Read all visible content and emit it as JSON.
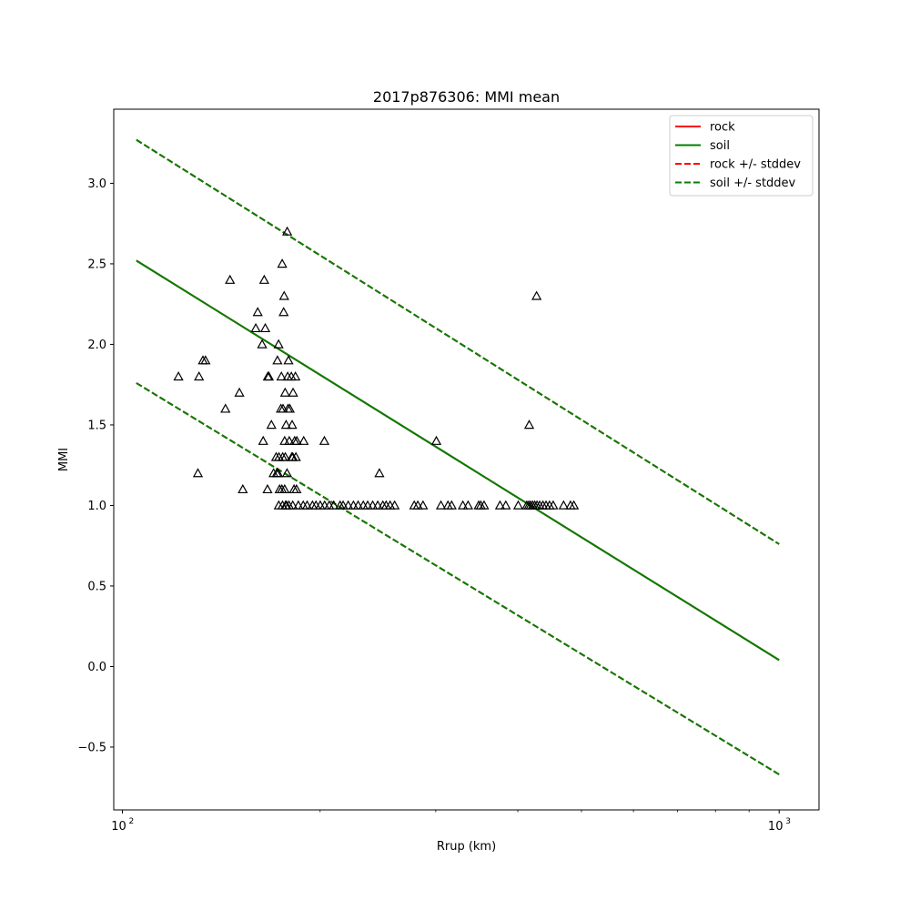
{
  "chart_data": {
    "type": "scatter",
    "title": "2017p876306: MMI mean",
    "xlabel": "Rrup (km)",
    "ylabel": "MMI",
    "xscale": "log",
    "xlim": [
      97,
      1150
    ],
    "ylim": [
      -0.89,
      3.46
    ],
    "xticks": [
      {
        "value": 100,
        "label": "10",
        "sup": "2"
      },
      {
        "value": 1000,
        "label": "10",
        "sup": "3"
      }
    ],
    "yticks": [
      {
        "value": -0.5,
        "label": "−0.5"
      },
      {
        "value": 0.0,
        "label": "0.0"
      },
      {
        "value": 0.5,
        "label": "0.5"
      },
      {
        "value": 1.0,
        "label": "1.0"
      },
      {
        "value": 1.5,
        "label": "1.5"
      },
      {
        "value": 2.0,
        "label": "2.0"
      },
      {
        "value": 2.5,
        "label": "2.5"
      },
      {
        "value": 3.0,
        "label": "3.0"
      }
    ],
    "grid": false,
    "legend_position": "top-right",
    "lines": [
      {
        "name": "rock",
        "color": "#ff0000",
        "dash": false,
        "x": [
          105,
          1000
        ],
        "y": [
          2.52,
          0.04
        ]
      },
      {
        "name": "soil",
        "color": "#008000",
        "dash": false,
        "x": [
          105,
          1000
        ],
        "y": [
          2.52,
          0.04
        ]
      },
      {
        "name": "rock +/- stddev",
        "color": "#ff0000",
        "dash": true,
        "x": [
          105,
          1000
        ],
        "y": [
          3.27,
          0.76
        ]
      },
      {
        "name": "rock +/- stddev",
        "color": "#ff0000",
        "dash": true,
        "x": [
          105,
          1000
        ],
        "y": [
          1.76,
          -0.67
        ]
      },
      {
        "name": "soil +/- stddev",
        "color": "#008000",
        "dash": true,
        "x": [
          105,
          1000
        ],
        "y": [
          3.27,
          0.76
        ]
      },
      {
        "name": "soil +/- stddev",
        "color": "#008000",
        "dash": true,
        "x": [
          105,
          1000
        ],
        "y": [
          1.76,
          -0.67
        ]
      }
    ],
    "legend": [
      {
        "label": "rock",
        "color": "#ff0000",
        "dash": false
      },
      {
        "label": "soil",
        "color": "#008000",
        "dash": false
      },
      {
        "label": "rock +/- stddev",
        "color": "#ff0000",
        "dash": true
      },
      {
        "label": "soil +/- stddev",
        "color": "#008000",
        "dash": true
      }
    ],
    "points": [
      [
        121.7,
        1.8
      ],
      [
        130.8,
        1.8
      ],
      [
        133.8,
        1.9
      ],
      [
        132.6,
        1.9
      ],
      [
        130.3,
        1.2
      ],
      [
        145.8,
        2.4
      ],
      [
        150.7,
        1.7
      ],
      [
        143.5,
        1.6
      ],
      [
        152.5,
        1.1
      ],
      [
        159.6,
        2.1
      ],
      [
        160.7,
        2.2
      ],
      [
        163.2,
        2.0
      ],
      [
        165.0,
        2.1
      ],
      [
        164.4,
        2.4
      ],
      [
        166.5,
        1.8
      ],
      [
        167.1,
        1.8
      ],
      [
        163.8,
        1.4
      ],
      [
        166.3,
        1.1
      ],
      [
        168.6,
        1.5
      ],
      [
        169.9,
        1.2
      ],
      [
        171.8,
        1.2
      ],
      [
        172.9,
        2.0
      ],
      [
        175.1,
        2.5
      ],
      [
        176.3,
        2.3
      ],
      [
        176.0,
        2.2
      ],
      [
        178.2,
        2.7
      ],
      [
        172.2,
        1.9
      ],
      [
        174.6,
        1.8
      ],
      [
        176.9,
        1.7
      ],
      [
        178.5,
        1.8
      ],
      [
        179.0,
        1.9
      ],
      [
        180.8,
        1.8
      ],
      [
        181.9,
        1.7
      ],
      [
        173.1,
        1.3
      ],
      [
        175.4,
        1.3
      ],
      [
        176.6,
        1.4
      ],
      [
        177.5,
        1.5
      ],
      [
        178.7,
        1.6
      ],
      [
        179.8,
        1.6
      ],
      [
        181.3,
        1.5
      ],
      [
        174.3,
        1.6
      ],
      [
        175.6,
        1.6
      ],
      [
        183.4,
        1.8
      ],
      [
        182.9,
        1.4
      ],
      [
        184.3,
        1.4
      ],
      [
        181.7,
        1.3
      ],
      [
        179.5,
        1.4
      ],
      [
        171.4,
        1.3
      ],
      [
        172.6,
        1.2
      ],
      [
        177.0,
        1.3
      ],
      [
        178.1,
        1.2
      ],
      [
        182.5,
        1.1
      ],
      [
        184.1,
        1.1
      ],
      [
        181.1,
        1.3
      ],
      [
        183.7,
        1.3
      ],
      [
        173.5,
        1.1
      ],
      [
        174.9,
        1.1
      ],
      [
        176.6,
        1.1
      ],
      [
        177.2,
        1.0
      ],
      [
        188.8,
        1.4
      ],
      [
        203.0,
        1.4
      ],
      [
        246.2,
        1.2
      ],
      [
        300.6,
        1.4
      ],
      [
        416.3,
        1.5
      ],
      [
        427.2,
        2.3
      ],
      [
        173.0,
        1.0
      ],
      [
        175.3,
        1.0
      ],
      [
        177.8,
        1.0
      ],
      [
        179.3,
        1.0
      ],
      [
        181.7,
        1.0
      ],
      [
        185.3,
        1.0
      ],
      [
        188.5,
        1.0
      ],
      [
        191.1,
        1.0
      ],
      [
        194.7,
        1.0
      ],
      [
        197.1,
        1.0
      ],
      [
        200.1,
        1.0
      ],
      [
        203.2,
        1.0
      ],
      [
        206.5,
        1.0
      ],
      [
        209.8,
        1.0
      ],
      [
        214.5,
        1.0
      ],
      [
        216.8,
        1.0
      ],
      [
        220.7,
        1.0
      ],
      [
        224.8,
        1.0
      ],
      [
        228.5,
        1.0
      ],
      [
        232.7,
        1.0
      ],
      [
        236.3,
        1.0
      ],
      [
        240.5,
        1.0
      ],
      [
        244.8,
        1.0
      ],
      [
        249.2,
        1.0
      ],
      [
        252.1,
        1.0
      ],
      [
        255.6,
        1.0
      ],
      [
        259.7,
        1.0
      ],
      [
        278.2,
        1.0
      ],
      [
        281.7,
        1.0
      ],
      [
        286.9,
        1.0
      ],
      [
        305.5,
        1.0
      ],
      [
        313.1,
        1.0
      ],
      [
        317.2,
        1.0
      ],
      [
        329.9,
        1.0
      ],
      [
        336.0,
        1.0
      ],
      [
        348.7,
        1.0
      ],
      [
        351.3,
        1.0
      ],
      [
        355.4,
        1.0
      ],
      [
        375.8,
        1.0
      ],
      [
        383.5,
        1.0
      ],
      [
        400.6,
        1.0
      ],
      [
        412.8,
        1.0
      ],
      [
        415.6,
        1.0
      ],
      [
        418.2,
        1.0
      ],
      [
        421.3,
        1.0
      ],
      [
        424.5,
        1.0
      ],
      [
        427.8,
        1.0
      ],
      [
        431.9,
        1.0
      ],
      [
        436.8,
        1.0
      ],
      [
        441.6,
        1.0
      ],
      [
        447.0,
        1.0
      ],
      [
        452.9,
        1.0
      ],
      [
        469.7,
        1.0
      ],
      [
        481.2,
        1.0
      ],
      [
        486.9,
        1.0
      ]
    ]
  }
}
